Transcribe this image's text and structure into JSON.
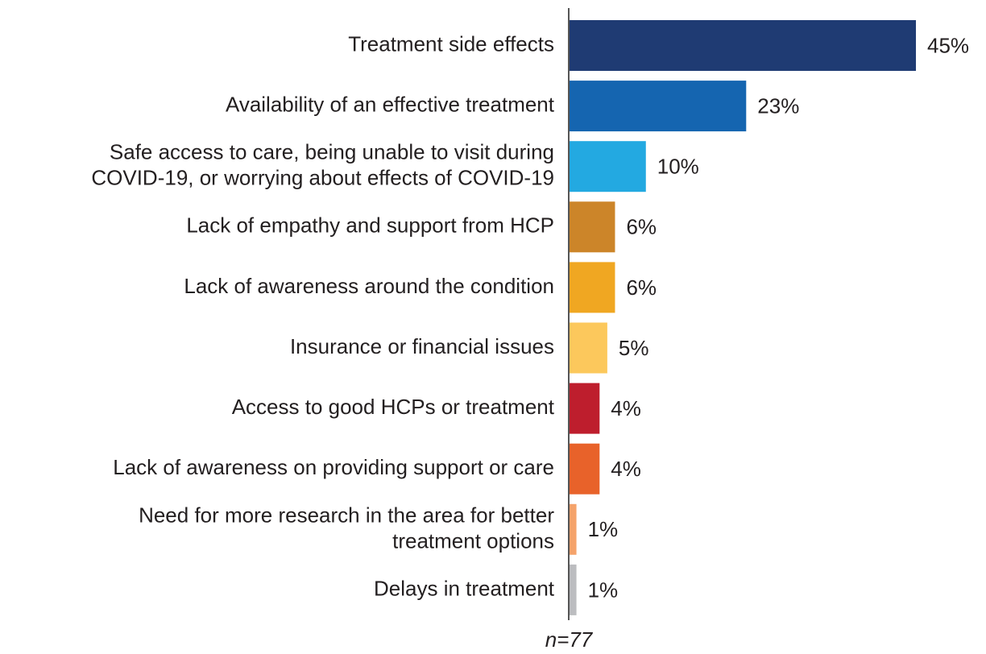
{
  "chart_data": {
    "type": "bar",
    "orientation": "horizontal",
    "categories": [
      "Treatment side effects",
      "Availability of an effective treatment",
      "Safe access to care, being unable to visit during\nCOVID-19, or worrying about effects of COVID-19",
      "Lack of empathy and support from HCP",
      "Lack of awareness around the condition",
      "Insurance or financial issues",
      "Access to good HCPs or treatment",
      "Lack of awareness on providing support or care",
      "Need for more research in the area for better\ntreatment options",
      "Delays in treatment"
    ],
    "values": [
      45,
      23,
      10,
      6,
      6,
      5,
      4,
      4,
      1,
      1
    ],
    "value_labels": [
      "45%",
      "23%",
      "10%",
      "6%",
      "6%",
      "5%",
      "4%",
      "4%",
      "1%",
      "1%"
    ],
    "colors": [
      "#1f3b73",
      "#1565b0",
      "#23a9e1",
      "#cc8529",
      "#f0a722",
      "#fcc85c",
      "#be1e2d",
      "#e8622a",
      "#f5a36b",
      "#bcbdc0"
    ],
    "note": "n=77"
  }
}
